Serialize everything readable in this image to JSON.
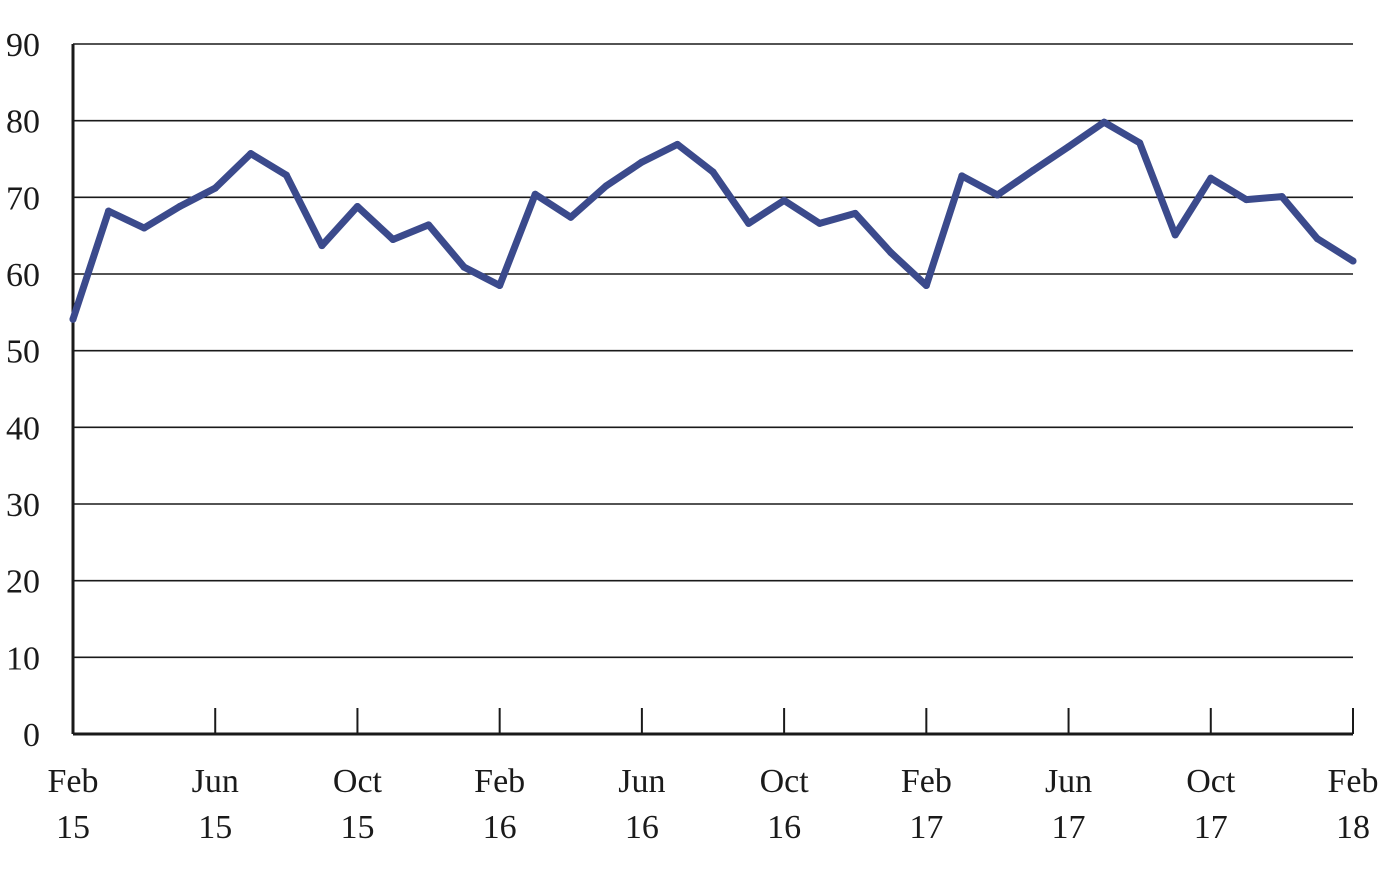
{
  "chart_data": {
    "type": "line",
    "title": "",
    "xlabel": "",
    "ylabel": "",
    "ylim": [
      0,
      90
    ],
    "yticks": [
      0,
      10,
      20,
      30,
      40,
      50,
      60,
      70,
      80,
      90
    ],
    "grid": true,
    "legend": "none",
    "x_ticks": [
      {
        "month": "Feb",
        "year": "15"
      },
      {
        "month": "Jun",
        "year": "15"
      },
      {
        "month": "Oct",
        "year": "15"
      },
      {
        "month": "Feb",
        "year": "16"
      },
      {
        "month": "Jun",
        "year": "16"
      },
      {
        "month": "Oct",
        "year": "16"
      },
      {
        "month": "Feb",
        "year": "17"
      },
      {
        "month": "Jun",
        "year": "17"
      },
      {
        "month": "Oct",
        "year": "17"
      },
      {
        "month": "Feb",
        "year": "18"
      }
    ],
    "x": [
      "2015-02",
      "2015-03",
      "2015-04",
      "2015-05",
      "2015-06",
      "2015-07",
      "2015-08",
      "2015-09",
      "2015-10",
      "2015-11",
      "2015-12",
      "2016-01",
      "2016-02",
      "2016-03",
      "2016-04",
      "2016-05",
      "2016-06",
      "2016-07",
      "2016-08",
      "2016-09",
      "2016-10",
      "2016-11",
      "2016-12",
      "2017-01",
      "2017-02",
      "2017-03",
      "2017-04",
      "2017-05",
      "2017-06",
      "2017-07",
      "2017-08",
      "2017-09",
      "2017-10",
      "2017-11",
      "2017-12",
      "2018-01",
      "2018-02"
    ],
    "series": [
      {
        "color": "#3b4a8c",
        "values": [
          54.1,
          68.2,
          66.0,
          68.8,
          71.2,
          75.7,
          72.9,
          63.7,
          68.8,
          64.5,
          66.4,
          60.9,
          58.5,
          70.4,
          67.4,
          71.5,
          74.6,
          76.9,
          73.3,
          66.6,
          69.6,
          66.6,
          67.9,
          62.8,
          58.5,
          72.8,
          70.3,
          73.5,
          76.6,
          79.8,
          77.1,
          65.1,
          72.5,
          69.7,
          70.1,
          64.6,
          61.7
        ]
      }
    ]
  }
}
